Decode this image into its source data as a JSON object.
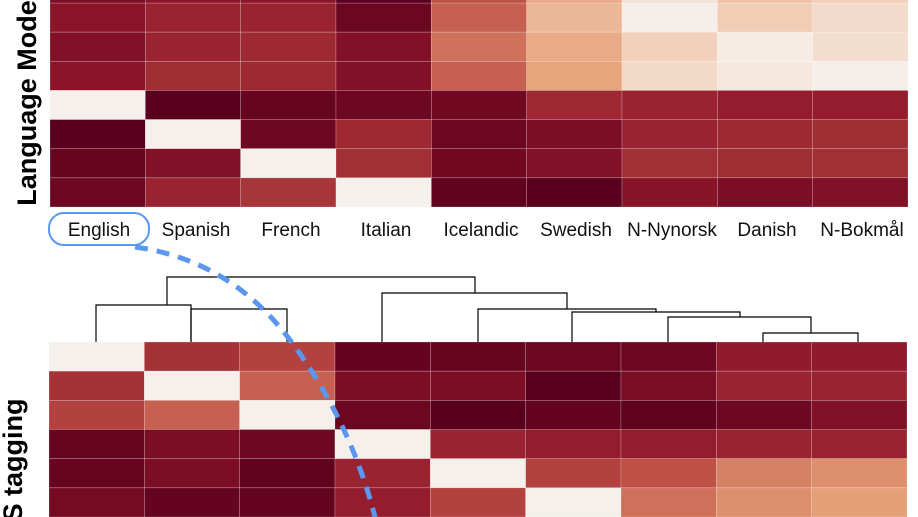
{
  "chart_data": [
    {
      "type": "heatmap",
      "ylabel": "Language Mode",
      "x_tick_labels": [
        "English",
        "Spanish",
        "French",
        "Italian",
        "Icelandic",
        "Swedish",
        "N-Nynorsk",
        "Danish",
        "N-Bokmål"
      ],
      "highlighted_label": "English",
      "visible_rows": [
        [
          0.15,
          0.2,
          0.2,
          0.05,
          0.4,
          0.7,
          0.96,
          0.8,
          0.87
        ],
        [
          0.12,
          0.2,
          0.22,
          0.12,
          0.45,
          0.65,
          0.82,
          0.95,
          0.88
        ],
        [
          0.15,
          0.23,
          0.22,
          0.12,
          0.4,
          0.62,
          0.86,
          0.93,
          0.96
        ],
        [
          0.97,
          0.0,
          0.04,
          0.06,
          0.07,
          0.22,
          0.2,
          0.18,
          0.18
        ],
        [
          0.0,
          0.97,
          0.06,
          0.22,
          0.05,
          0.1,
          0.2,
          0.22,
          0.23
        ],
        [
          0.04,
          0.12,
          0.97,
          0.24,
          0.07,
          0.12,
          0.24,
          0.23,
          0.24
        ],
        [
          0.06,
          0.2,
          0.26,
          0.97,
          0.02,
          0.0,
          0.14,
          0.1,
          0.12
        ]
      ]
    },
    {
      "type": "heatmap",
      "ylabel": "S tagging",
      "dendrogram": true,
      "visible_rows": [
        [
          0.97,
          0.25,
          0.3,
          0.03,
          0.04,
          0.05,
          0.06,
          0.17,
          0.17
        ],
        [
          0.25,
          0.97,
          0.4,
          0.1,
          0.1,
          0.0,
          0.1,
          0.2,
          0.2
        ],
        [
          0.3,
          0.4,
          0.97,
          0.05,
          0.0,
          0.03,
          0.02,
          0.06,
          0.12
        ],
        [
          0.04,
          0.1,
          0.06,
          0.97,
          0.2,
          0.18,
          0.18,
          0.2,
          0.2
        ],
        [
          0.04,
          0.1,
          0.02,
          0.2,
          0.97,
          0.3,
          0.35,
          0.5,
          0.55
        ],
        [
          0.08,
          0.03,
          0.03,
          0.18,
          0.3,
          0.97,
          0.45,
          0.55,
          0.6
        ]
      ]
    }
  ]
}
